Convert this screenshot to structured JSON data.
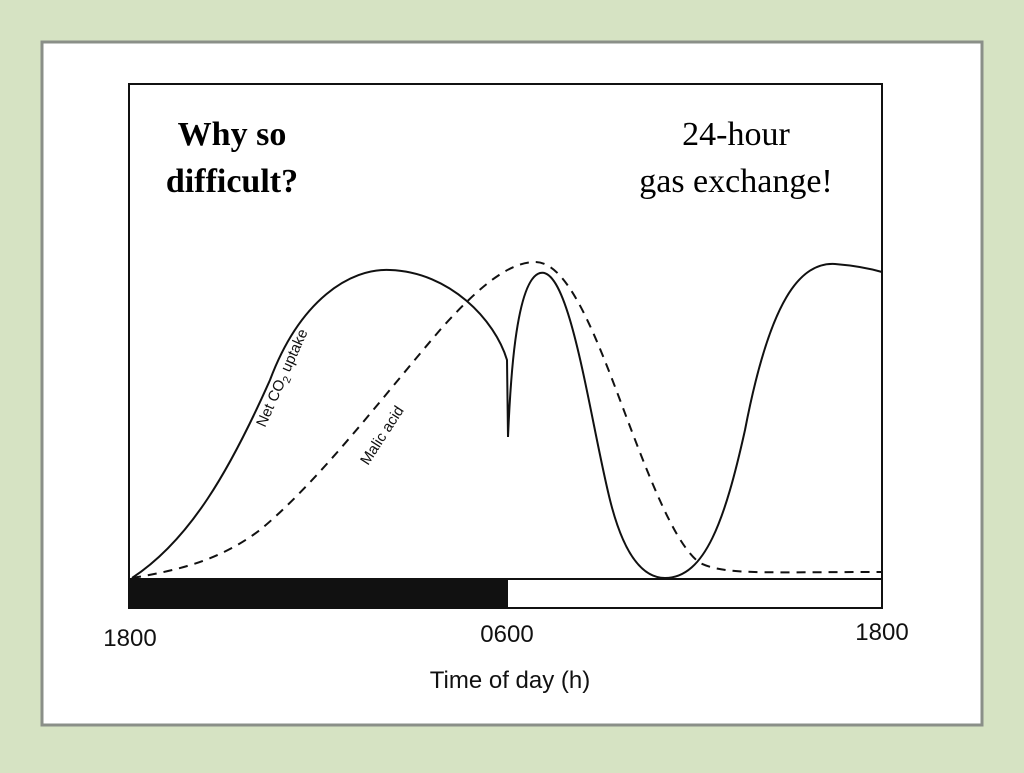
{
  "header": {
    "title_lines": [
      "Why so",
      "difficult?"
    ]
  },
  "note": {
    "lines": [
      "24-hour",
      "gas exchange!"
    ]
  },
  "curves": [
    {
      "label_parts": [
        "Net CO",
        "2",
        " uptake"
      ]
    },
    {
      "label_parts": [
        "Malic acid"
      ]
    }
  ],
  "axis": {
    "labels": [
      "1800",
      "0600",
      "1800"
    ],
    "title": "Time of day (h)"
  }
}
